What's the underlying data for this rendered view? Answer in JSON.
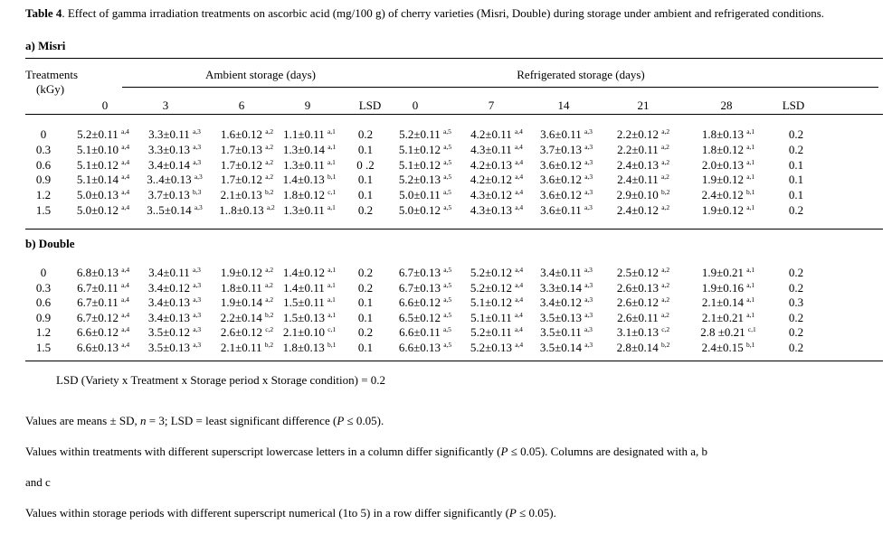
{
  "caption": {
    "label": "Table 4",
    "text": ". Effect of gamma irradiation treatments on ascorbic acid (mg/100 g) of cherry varieties (Misri, Double) during storage under ambient and refrigerated conditions."
  },
  "headers": {
    "treatments_line1": "Treatments",
    "treatments_line2": "(kGy)",
    "ambient": "Ambient storage (days)",
    "refrigerated": "Refrigerated storage (days)",
    "cols": [
      "0",
      "3",
      "6",
      "9",
      "LSD",
      "0",
      "7",
      "14",
      "21",
      "28",
      "LSD"
    ]
  },
  "sections": [
    {
      "title": "a) Misri",
      "rows": [
        {
          "t": "0",
          "v": [
            "5.2±0.11 |a,4",
            "3.3±0.11 |a,3",
            "1.6±0.12 |a,2",
            "1.1±0.11 |a,1",
            "0.2",
            "5.2±0.11 |a,5",
            "4.2±0.11 |a,4",
            "3.6±0.11 |a,3",
            "2.2±0.12 |a,2",
            "1.8±0.13 |a,1",
            "0.2"
          ]
        },
        {
          "t": "0.3",
          "v": [
            "5.1±0.10 |a,4",
            "3.3±0.13 |a,3",
            "1.7±0.13 |a,2",
            "1.3±0.14 |a,1",
            "0.1",
            "5.1±0.12 |a,5",
            "4.3±0.11 |a,4",
            "3.7±0.13 |a,3",
            "2.2±0.11 |a,2",
            "1.8±0.12 |a,1",
            "0.2"
          ]
        },
        {
          "t": "0.6",
          "v": [
            "5.1±0.12 |a,4",
            "3.4±0.14 |a,3",
            "1.7±0.12 |a,2",
            "1.3±0.11 |a,1",
            "0 .2",
            "5.1±0.12 |a,5",
            "4.2±0.13 |a,4",
            "3.6±0.12 |a,3",
            "2.4±0.13 |a,2",
            "2.0±0.13 |a,1",
            "0.1"
          ]
        },
        {
          "t": "0.9",
          "v": [
            "5.1±0.14 |a,4",
            "3..4±0.13 |a,3",
            "1.7±0.12 |a,2",
            "1.4±0.13 |b,1",
            "0.1",
            "5.2±0.13 |a,5",
            "4.2±0.12 |a,4",
            "3.6±0.12 |a,3",
            "2.4±0.11 |a,2",
            "1.9±0.12 |a,1",
            "0.1"
          ]
        },
        {
          "t": "1.2",
          "v": [
            "5.0±0.13 |a,4",
            "3.7±0.13 |b,3",
            "2.1±0.13 |b,2",
            "1.8±0.12 |c,1",
            "0.1",
            "5.0±0.11 |a,5",
            "4.3±0.12 |a,4",
            "3.6±0.12 |a,3",
            "2.9±0.10 |b,2",
            "2.4±0.12 |b,1",
            "0.1"
          ]
        },
        {
          "t": "1.5",
          "v": [
            "5.0±0.12 |a,4",
            "3..5±0.14 |a,3",
            "1..8±0.13 |a,2",
            "1.3±0.11 |a,1",
            "0.2",
            "5.0±0.12 |a,5",
            "4.3±0.13 |a,4",
            "3.6±0.11 |a,3",
            "2.4±0.12 |a,2",
            "1.9±0.12 |a,1",
            "0.2"
          ]
        }
      ]
    },
    {
      "title": "b) Double",
      "rows": [
        {
          "t": "0",
          "v": [
            "6.8±0.13 |a,4",
            "3.4±0.11 |a,3",
            "1.9±0.12 |a,2",
            "1.4±0.12 |a,1",
            "0.2",
            "6.7±0.13 |a,5",
            "5.2±0.12 |a,4",
            "3.4±0.11 |a,3",
            "2.5±0.12 |a,2",
            "1.9±0.21 |a,1",
            "0.2"
          ]
        },
        {
          "t": "0.3",
          "v": [
            "6.7±0.11 |a,4",
            "3.4±0.12 |a,3",
            "1.8±0.11 |a,2",
            "1.4±0.11 |a,1",
            "0.2",
            "6.7±0.13 |a,5",
            "5.2±0.12 |a,4",
            "3.3±0.14 |a,3",
            "2.6±0.13 |a,2",
            "1.9±0.16 |a,1",
            "0.2"
          ]
        },
        {
          "t": "0.6",
          "v": [
            "6.7±0.11 |a,4",
            "3.4±0.13 |a,3",
            "1.9±0.14 |a,2",
            "1.5±0.11 |a,1",
            "0.1",
            "6.6±0.12 |a,5",
            "5.1±0.12 |a,4",
            "3.4±0.12 |a,3",
            "2.6±0.12 |a,2",
            "2.1±0.14 |a,1",
            "0.3"
          ]
        },
        {
          "t": "0.9",
          "v": [
            "6.7±0.12 |a,4",
            "3.4±0.13 |a,3",
            "2.2±0.14 |b,2",
            "1.5±0.13 |a,1",
            "0.1",
            "6.5±0.12 |a,5",
            "5.1±0.11 |a,4",
            "3.5±0.13 |a,3",
            "2.6±0.11 |a,2",
            "2.1±0.21 |a,1",
            "0.2"
          ]
        },
        {
          "t": "1.2",
          "v": [
            "6.6±0.12 |a,4",
            "3.5±0.12 |a,3",
            "2.6±0.12 |c,2",
            "2.1±0.10 |c,1",
            "0.2",
            "6.6±0.11 |a,5",
            "5.2±0.11 |a,4",
            "3.5±0.11 |a,3",
            "3.1±0.13 |c,2",
            "2.8 ±0.21 |c,1",
            "0.2"
          ]
        },
        {
          "t": "1.5",
          "v": [
            "6.6±0.13 |a,4",
            "3.5±0.13 |a,3",
            "2.1±0.11 |b,2",
            "1.8±0.13 |b,1",
            "0.1",
            "6.6±0.13 |a,5",
            "5.2±0.13 |a,4",
            "3.5±0.14 |a,3",
            "2.8±0.14 |b,2",
            "2.4±0.15 |b,1",
            "0.2"
          ]
        }
      ]
    }
  ],
  "lsd_line": "LSD (Variety x Treatment x Storage period x Storage condition) = 0.2",
  "notes": {
    "n1_a": "Values are means ± SD, ",
    "n1_n": "n",
    "n1_b": " = 3; LSD = least significant difference (",
    "n1_p": "P",
    "n1_c": " ≤ 0.05).",
    "n2_a": "Values within treatments with different superscript lowercase letters in a column differ significantly (",
    "n2_p": "P",
    "n2_b": " ≤ 0.05). Columns are designated with a, b",
    "n3": "and c",
    "n4_a": "Values within storage periods with different superscript numerical (1to 5) in a row differ significantly (",
    "n4_p": "P",
    "n4_b": " ≤ 0.05)."
  }
}
